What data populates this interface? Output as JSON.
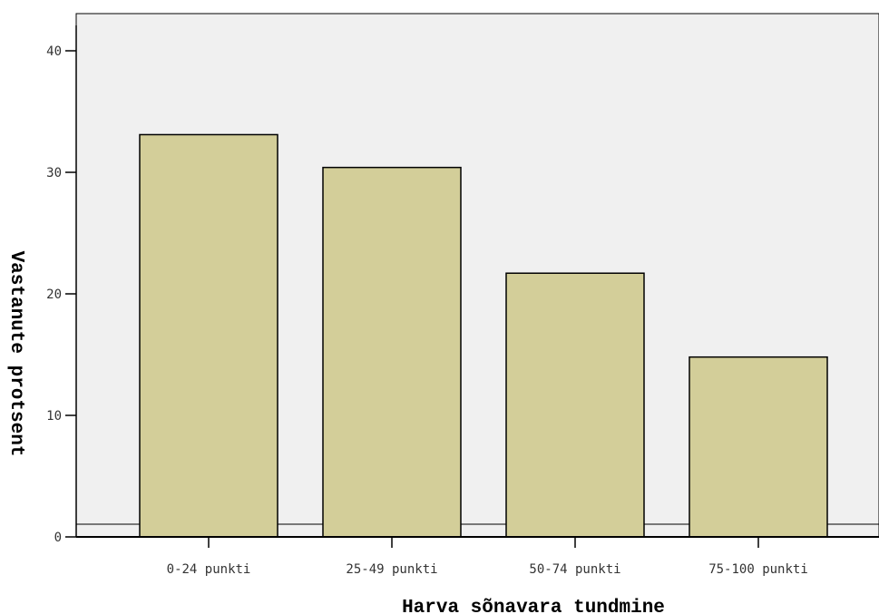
{
  "chart_data": {
    "type": "bar",
    "title": "",
    "xlabel": "Harva sõnavara tundmine",
    "ylabel": "Vastanute protsent",
    "categories": [
      "0-24 punkti",
      "25-49 punkti",
      "50-74 punkti",
      "75-100 punkti"
    ],
    "values": [
      33.1,
      30.4,
      21.7,
      14.8
    ],
    "ylim": [
      0,
      42
    ],
    "yticks": [
      0,
      10,
      20,
      30,
      40
    ],
    "ytick_labels": [
      "0",
      "10",
      "20",
      "30",
      "40"
    ],
    "grid": false,
    "legend": "none",
    "colors": {
      "bar_fill": "#d3ce99",
      "bar_stroke": "#000000",
      "plot_background": "#f0f0f0",
      "axis": "#000000"
    }
  }
}
